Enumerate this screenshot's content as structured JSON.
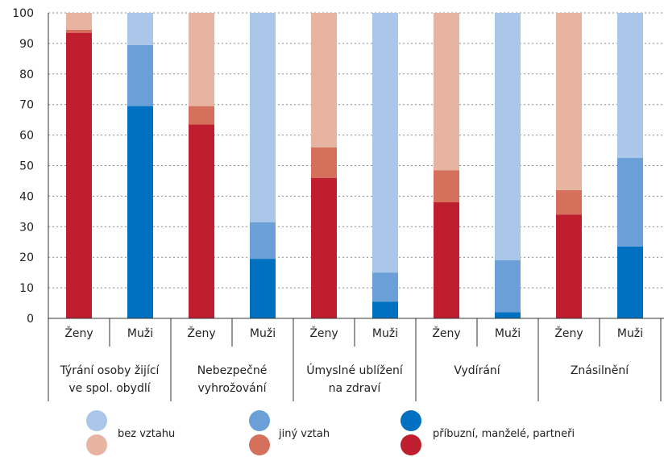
{
  "chart_data": {
    "type": "bar",
    "stacked": true,
    "ylim": [
      0,
      100
    ],
    "yticks": [
      0,
      10,
      20,
      30,
      40,
      50,
      60,
      70,
      80,
      90,
      100
    ],
    "grid": true,
    "legend_position": "bottom",
    "categories": [
      {
        "group": "Týrání osoby žijící ve spol. obydlí",
        "group_lines": [
          "Týrání osoby žijící",
          "ve spol. obydlí"
        ],
        "sub": "Ženy",
        "gender": "f"
      },
      {
        "group": "Týrání osoby žijící ve spol. obydlí",
        "group_lines": [
          "Týrání osoby žijící",
          "ve spol. obydlí"
        ],
        "sub": "Muži",
        "gender": "m"
      },
      {
        "group": "Nebezpečné vyhrožování",
        "group_lines": [
          "Nebezpečné",
          "vyhrožování"
        ],
        "sub": "Ženy",
        "gender": "f"
      },
      {
        "group": "Nebezpečné vyhrožování",
        "group_lines": [
          "Nebezpečné",
          "vyhrožování"
        ],
        "sub": "Muži",
        "gender": "m"
      },
      {
        "group": "Úmyslné ublížení na zdraví",
        "group_lines": [
          "Úmyslné ublížení",
          "na zdraví"
        ],
        "sub": "Ženy",
        "gender": "f"
      },
      {
        "group": "Úmyslné ublížení na zdraví",
        "group_lines": [
          "Úmyslné ublížení",
          "na zdraví"
        ],
        "sub": "Muži",
        "gender": "m"
      },
      {
        "group": "Vydírání",
        "group_lines": [
          "Vydírání"
        ],
        "sub": "Ženy",
        "gender": "f"
      },
      {
        "group": "Vydírání",
        "group_lines": [
          "Vydírání"
        ],
        "sub": "Muži",
        "gender": "m"
      },
      {
        "group": "Znásilnění",
        "group_lines": [
          "Znásilnění"
        ],
        "sub": "Ženy",
        "gender": "f"
      },
      {
        "group": "Znásilnění",
        "group_lines": [
          "Znásilnění"
        ],
        "sub": "Muži",
        "gender": "m"
      }
    ],
    "series": [
      {
        "name": "příbuzní, manželé, partneři",
        "values": [
          93.5,
          69.5,
          63.5,
          19.5,
          46,
          5.5,
          38,
          2,
          34,
          23.5
        ],
        "colors": {
          "f": "#be1e2d",
          "m": "#0070c0"
        }
      },
      {
        "name": "jiný vztah",
        "values": [
          1,
          20,
          6,
          12,
          10,
          9.5,
          10.5,
          17,
          8,
          29
        ],
        "colors": {
          "f": "#d5705c",
          "m": "#6a9fd8"
        }
      },
      {
        "name": "bez vztahu",
        "values": [
          5.5,
          10.5,
          30.5,
          68.5,
          44,
          85,
          51.5,
          81,
          58,
          47.5
        ],
        "colors": {
          "f": "#e8b4a2",
          "m": "#aac6e8"
        }
      }
    ],
    "legend_order": [
      "bez vztahu",
      "jiný vztah",
      "příbuzní, manželé, partneři"
    ]
  }
}
